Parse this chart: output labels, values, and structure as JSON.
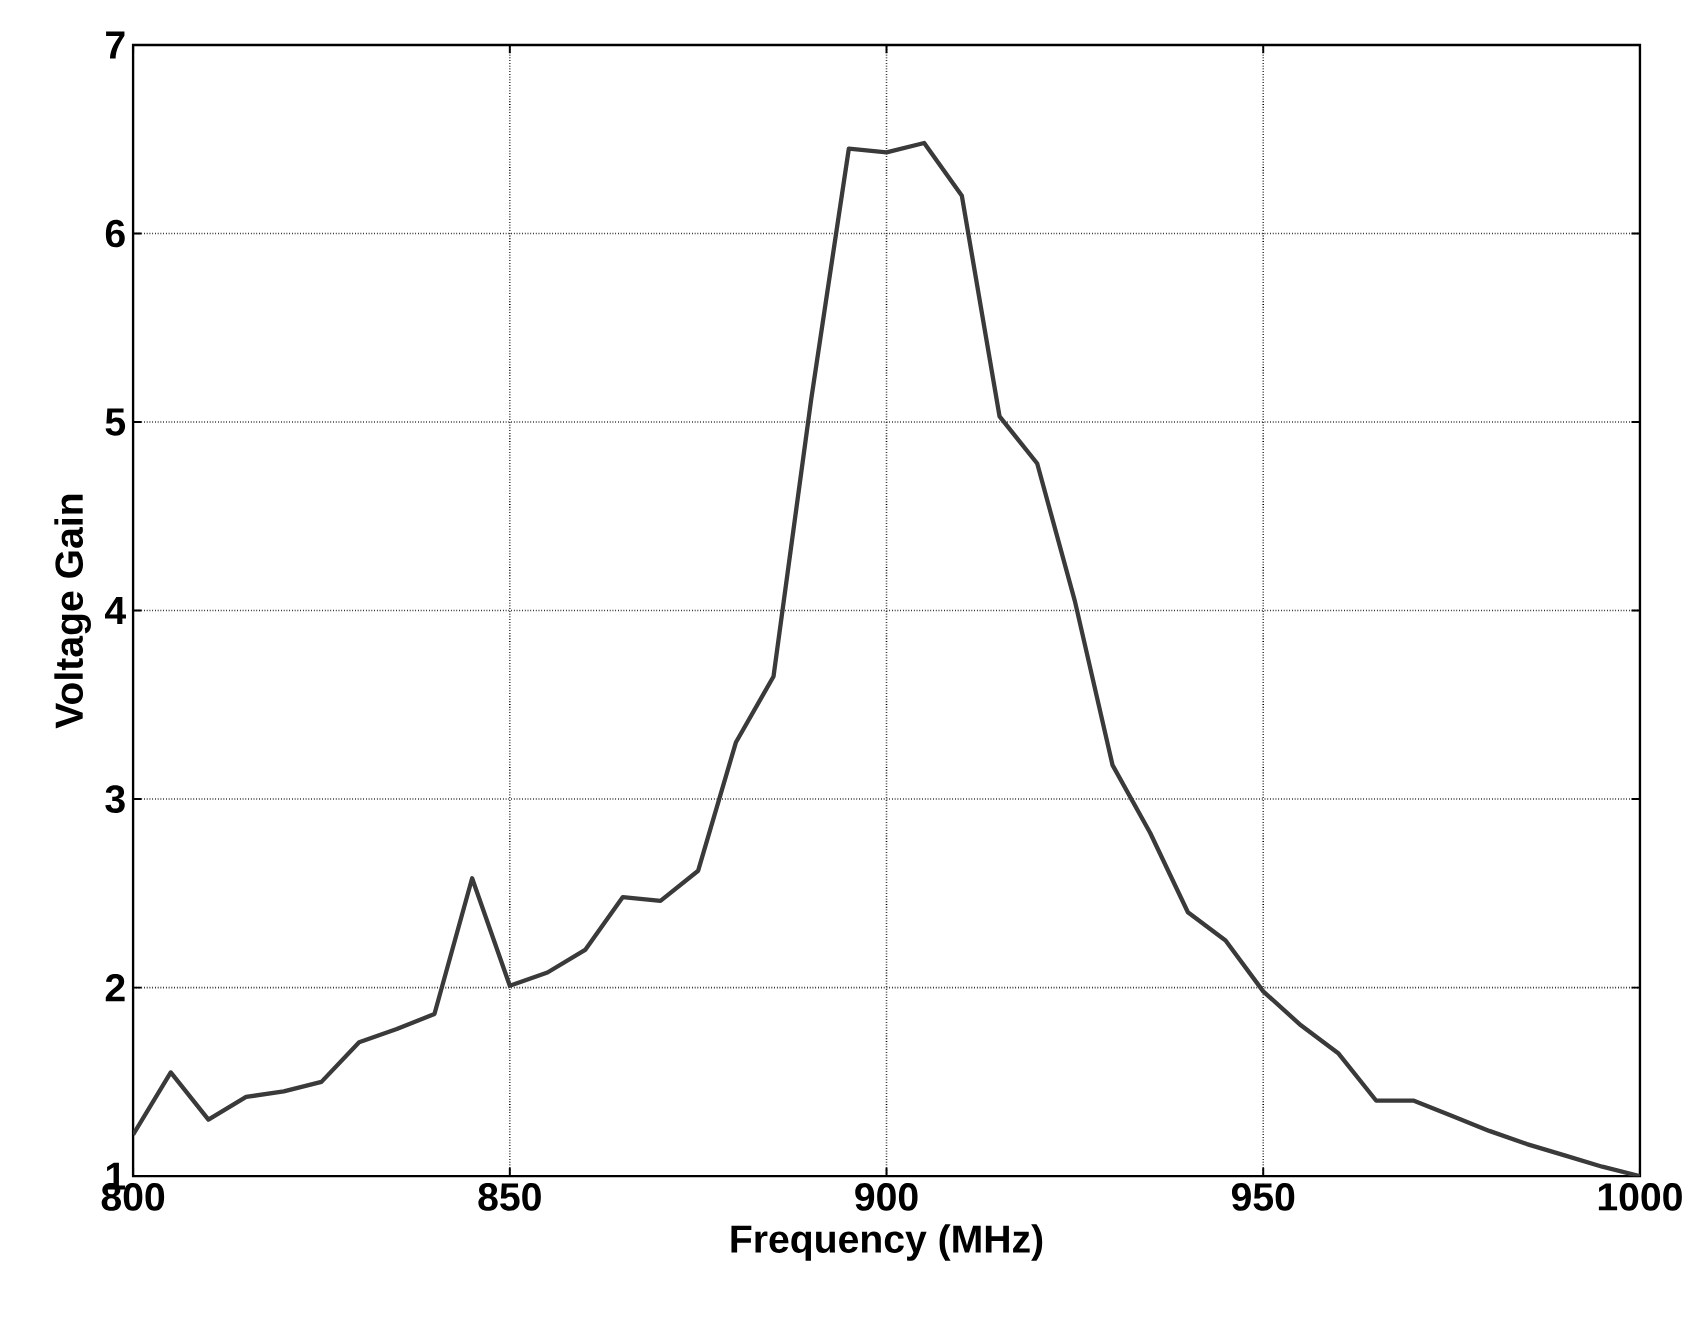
{
  "chart_data": {
    "type": "line",
    "xlabel": "Frequency (MHz)",
    "ylabel": "Voltage Gain",
    "xlim": [
      800,
      1000
    ],
    "ylim": [
      1,
      7
    ],
    "xticks": [
      800,
      850,
      900,
      950,
      1000
    ],
    "yticks": [
      1,
      2,
      3,
      4,
      5,
      6,
      7
    ],
    "grid": true,
    "line_style": "solid",
    "marker": "none",
    "x": [
      800,
      805,
      810,
      815,
      820,
      825,
      830,
      835,
      840,
      845,
      850,
      855,
      860,
      865,
      870,
      875,
      880,
      885,
      890,
      895,
      900,
      905,
      910,
      915,
      920,
      925,
      930,
      935,
      940,
      945,
      950,
      955,
      960,
      965,
      970,
      975,
      980,
      985,
      990,
      995,
      1000
    ],
    "series": [
      {
        "color": "#3a3a3a",
        "values": [
          1.22,
          1.55,
          1.3,
          1.42,
          1.45,
          1.5,
          1.71,
          1.78,
          1.86,
          2.58,
          2.01,
          2.08,
          2.2,
          2.48,
          2.46,
          2.62,
          3.3,
          3.65,
          5.12,
          6.45,
          6.43,
          6.48,
          6.2,
          5.03,
          4.78,
          4.05,
          3.18,
          2.82,
          2.4,
          2.25,
          1.98,
          1.8,
          1.65,
          1.4,
          1.4,
          1.32,
          1.24,
          1.17,
          1.11,
          1.05,
          1.0
        ]
      }
    ]
  }
}
